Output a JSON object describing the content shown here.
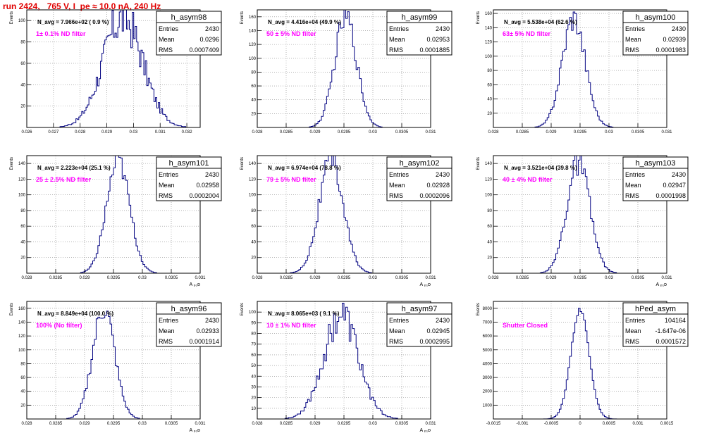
{
  "header": {
    "title": "run 2424,   765 V, I_pe ≈ 10.0 nA, 240 Hz"
  },
  "colors": {
    "histogram": "#000080",
    "annotation": "#ff00ff",
    "title_red": "#e00000",
    "grid": "#888888"
  },
  "chart_data": [
    {
      "type": "bar",
      "name": "h_asym98",
      "stats": {
        "Entries": "2430",
        "Mean": "0.0296",
        "RMS": "0.0007409"
      },
      "navg": "N_avg = 7.966e+02 ( 0.9 %)",
      "annotation": "1± 0.1% ND filter",
      "ylabel": "Events",
      "xlabel": "",
      "xlim": [
        0.026,
        0.0325
      ],
      "ylim": [
        0,
        110
      ],
      "xticks": [
        "0.026",
        "0.027",
        "0.028",
        "0.029",
        "0.03",
        "0.031",
        "0.032"
      ],
      "xtick_values": [
        0.026,
        0.027,
        0.028,
        0.029,
        0.03,
        0.031,
        0.032
      ],
      "yticks": [
        "20",
        "40",
        "60",
        "80",
        "100"
      ],
      "ytick_values": [
        20,
        40,
        60,
        80,
        100
      ],
      "hist": {
        "mean": 0.0296,
        "sigma": 0.00074,
        "peak": 103,
        "bins": 120,
        "noise": 0.22
      }
    },
    {
      "type": "bar",
      "name": "h_asym99",
      "stats": {
        "Entries": "2430",
        "Mean": "0.02953",
        "RMS": "0.0001885"
      },
      "navg": "N_avg = 4.416e+04 (49.9 %)",
      "annotation": "50 ± 5% ND filter",
      "ylabel": "Events",
      "xlabel": "",
      "xlim": [
        0.028,
        0.031
      ],
      "ylim": [
        0,
        170
      ],
      "xticks": [
        "0.028",
        "0.0285",
        "0.029",
        "0.0295",
        "0.03",
        "0.0305",
        "0.031"
      ],
      "xtick_values": [
        0.028,
        0.0285,
        0.029,
        0.0295,
        0.03,
        0.0305,
        0.031
      ],
      "yticks": [
        "20",
        "40",
        "60",
        "80",
        "100",
        "120",
        "140",
        "160"
      ],
      "ytick_values": [
        20,
        40,
        60,
        80,
        100,
        120,
        140,
        160
      ],
      "hist": {
        "mean": 0.02953,
        "sigma": 0.00019,
        "peak": 160,
        "bins": 100,
        "noise": 0.12
      }
    },
    {
      "type": "bar",
      "name": "h_asym100",
      "stats": {
        "Entries": "2430",
        "Mean": "0.02939",
        "RMS": "0.0001983"
      },
      "navg": "N_avg = 5.538e+04 (62.6 %)",
      "annotation": "63± 5% ND filter",
      "ylabel": "Events",
      "xlabel": "",
      "xlim": [
        0.028,
        0.031
      ],
      "ylim": [
        0,
        165
      ],
      "xticks": [
        "0.028",
        "0.0285",
        "0.029",
        "0.0295",
        "0.03",
        "0.0305",
        "0.031"
      ],
      "xtick_values": [
        0.028,
        0.0285,
        0.029,
        0.0295,
        0.03,
        0.0305,
        0.031
      ],
      "yticks": [
        "20",
        "40",
        "60",
        "80",
        "100",
        "120",
        "140",
        "160"
      ],
      "ytick_values": [
        20,
        40,
        60,
        80,
        100,
        120,
        140,
        160
      ],
      "hist": {
        "mean": 0.02939,
        "sigma": 0.0002,
        "peak": 155,
        "bins": 100,
        "noise": 0.12
      }
    },
    {
      "type": "bar",
      "name": "h_asym101",
      "stats": {
        "Entries": "2430",
        "Mean": "0.02958",
        "RMS": "0.0002004"
      },
      "navg": "N_avg = 2.223e+04 (25.1 %)",
      "annotation": "25 ± 2.5% ND filter",
      "ylabel": "Events",
      "xlabel": "A ₚ₁ᴅ",
      "xlim": [
        0.028,
        0.031
      ],
      "ylim": [
        0,
        150
      ],
      "xticks": [
        "0.028",
        "0.0285",
        "0.029",
        "0.0295",
        "0.03",
        "0.0305",
        "0.031"
      ],
      "xtick_values": [
        0.028,
        0.0285,
        0.029,
        0.0295,
        0.03,
        0.0305,
        0.031
      ],
      "yticks": [
        "20",
        "40",
        "60",
        "80",
        "100",
        "120",
        "140"
      ],
      "ytick_values": [
        20,
        40,
        60,
        80,
        100,
        120,
        140
      ],
      "hist": {
        "mean": 0.02958,
        "sigma": 0.0002,
        "peak": 143,
        "bins": 100,
        "noise": 0.1
      }
    },
    {
      "type": "bar",
      "name": "h_asym102",
      "stats": {
        "Entries": "2430",
        "Mean": "0.02928",
        "RMS": "0.0002096"
      },
      "navg": "N_avg = 6.974e+04 (78.8 %)",
      "annotation": "79 ± 5% ND filter",
      "ylabel": "Events",
      "xlabel": "A ₚ₁ᴅ",
      "xlim": [
        0.028,
        0.031
      ],
      "ylim": [
        0,
        150
      ],
      "xticks": [
        "0.028",
        "0.0285",
        "0.029",
        "0.0295",
        "0.03",
        "0.0305",
        "0.031"
      ],
      "xtick_values": [
        0.028,
        0.0285,
        0.029,
        0.0295,
        0.03,
        0.0305,
        0.031
      ],
      "yticks": [
        "20",
        "40",
        "60",
        "80",
        "100",
        "120",
        "140"
      ],
      "ytick_values": [
        20,
        40,
        60,
        80,
        100,
        120,
        140
      ],
      "hist": {
        "mean": 0.02928,
        "sigma": 0.00021,
        "peak": 143,
        "bins": 100,
        "noise": 0.12
      }
    },
    {
      "type": "bar",
      "name": "h_asym103",
      "stats": {
        "Entries": "2430",
        "Mean": "0.02947",
        "RMS": "0.0001998"
      },
      "navg": "N_avg = 3.521e+04 (39.8 %)",
      "annotation": "40 ± 4% ND filter",
      "ylabel": "Events",
      "xlabel": "A ₚ₁ᴅ",
      "xlim": [
        0.028,
        0.031
      ],
      "ylim": [
        0,
        150
      ],
      "xticks": [
        "0.028",
        "0.0285",
        "0.029",
        "0.0295",
        "0.03",
        "0.0305",
        "0.031"
      ],
      "xtick_values": [
        0.028,
        0.0285,
        0.029,
        0.0295,
        0.03,
        0.0305,
        0.031
      ],
      "yticks": [
        "20",
        "40",
        "60",
        "80",
        "100",
        "120",
        "140"
      ],
      "ytick_values": [
        20,
        40,
        60,
        80,
        100,
        120,
        140
      ],
      "hist": {
        "mean": 0.02947,
        "sigma": 0.0002,
        "peak": 140,
        "bins": 100,
        "noise": 0.13
      }
    },
    {
      "type": "bar",
      "name": "h_asym96",
      "stats": {
        "Entries": "2430",
        "Mean": "0.02933",
        "RMS": "0.0001914"
      },
      "navg": "N_avg = 8.849e+04 (100.0 %)",
      "annotation": "100% (No filter)",
      "ylabel": "Events",
      "xlabel": "A ₚ₁ᴅ",
      "xlim": [
        0.028,
        0.031
      ],
      "ylim": [
        0,
        170
      ],
      "xticks": [
        "0.028",
        "0.0285",
        "0.029",
        "0.0295",
        "0.03",
        "0.0305",
        "0.031"
      ],
      "xtick_values": [
        0.028,
        0.0285,
        0.029,
        0.0295,
        0.03,
        0.0305,
        0.031
      ],
      "yticks": [
        "20",
        "40",
        "60",
        "80",
        "100",
        "120",
        "140",
        "160"
      ],
      "ytick_values": [
        20,
        40,
        60,
        80,
        100,
        120,
        140,
        160
      ],
      "hist": {
        "mean": 0.02933,
        "sigma": 0.00019,
        "peak": 160,
        "bins": 100,
        "noise": 0.12
      }
    },
    {
      "type": "bar",
      "name": "h_asym97",
      "stats": {
        "Entries": "2430",
        "Mean": "0.02945",
        "RMS": "0.0002995"
      },
      "navg": "N_avg = 8.065e+03 ( 9.1 %)",
      "annotation": "10 ± 1% ND filter",
      "ylabel": "Events",
      "xlabel": "A ₚ₁ᴅ",
      "xlim": [
        0.028,
        0.031
      ],
      "ylim": [
        0,
        110
      ],
      "xticks": [
        "0.028",
        "0.0285",
        "0.029",
        "0.0295",
        "0.03",
        "0.0305",
        "0.031"
      ],
      "xtick_values": [
        0.028,
        0.0285,
        0.029,
        0.0295,
        0.03,
        0.0305,
        0.031
      ],
      "yticks": [
        "10",
        "20",
        "30",
        "40",
        "50",
        "60",
        "70",
        "80",
        "90",
        "100"
      ],
      "ytick_values": [
        10,
        20,
        30,
        40,
        50,
        60,
        70,
        80,
        90,
        100
      ],
      "hist": {
        "mean": 0.02945,
        "sigma": 0.0003,
        "peak": 97,
        "bins": 100,
        "noise": 0.18
      }
    },
    {
      "type": "bar",
      "name": "hPed_asym",
      "stats": {
        "Entries": "104164",
        "Mean": "-1.647e-06",
        "RMS": "0.0001572"
      },
      "navg": "",
      "annotation": "Shutter Closed",
      "ylabel": "Events",
      "xlabel": "",
      "xlim": [
        -0.0015,
        0.0015
      ],
      "ylim": [
        0,
        8500
      ],
      "xticks": [
        "-0.0015",
        "-0.001",
        "-0.0005",
        "0",
        "0.0005",
        "0.001",
        "0.0015"
      ],
      "xtick_values": [
        -0.0015,
        -0.001,
        -0.0005,
        0,
        0.0005,
        0.001,
        0.0015
      ],
      "yticks": [
        "1000",
        "2000",
        "3000",
        "4000",
        "5000",
        "6000",
        "7000",
        "8000"
      ],
      "ytick_values": [
        1000,
        2000,
        3000,
        4000,
        5000,
        6000,
        7000,
        8000
      ],
      "hist": {
        "mean": 0.0,
        "sigma": 0.000157,
        "peak": 7900,
        "bins": 100,
        "noise": 0.02
      }
    }
  ]
}
